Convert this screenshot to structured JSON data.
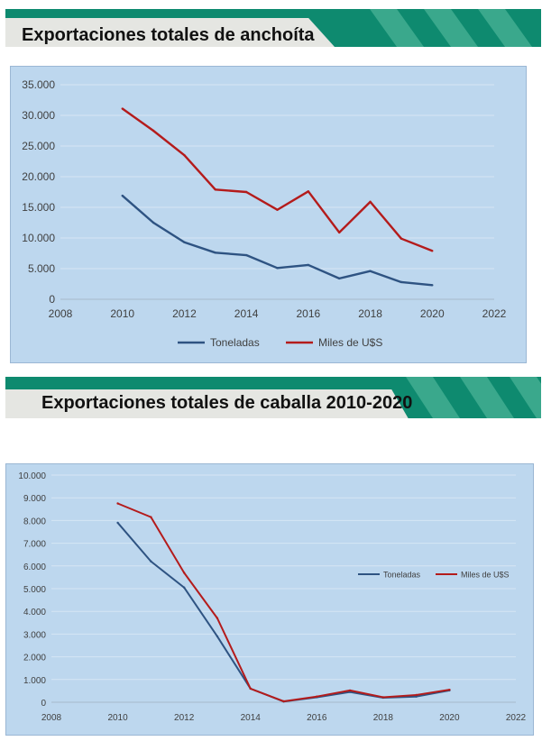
{
  "sections": [
    {
      "title": "Exportaciones totales de anchoíta"
    },
    {
      "title": "Exportaciones totales de caballa 2010-2020"
    }
  ],
  "chart_data": [
    {
      "type": "line",
      "title": "Exportaciones totales de anchoíta",
      "x": [
        2010,
        2011,
        2012,
        2013,
        2014,
        2015,
        2016,
        2017,
        2018,
        2019,
        2020
      ],
      "xlim": [
        2008,
        2022
      ],
      "x_ticks": [
        "2008",
        "2010",
        "2012",
        "2014",
        "2016",
        "2018",
        "2020",
        "2022"
      ],
      "ylim": [
        0,
        35000
      ],
      "y_ticks": [
        "0",
        "5.000",
        "10.000",
        "15.000",
        "20.000",
        "25.000",
        "30.000",
        "35.000"
      ],
      "grid": true,
      "legend_position": "bottom",
      "series": [
        {
          "name": "Toneladas",
          "color": "#2e5382",
          "values": [
            16900,
            12500,
            9300,
            7600,
            7200,
            5100,
            5600,
            3400,
            4600,
            2800,
            2300
          ]
        },
        {
          "name": "Miles de U$S",
          "color": "#b41b1b",
          "values": [
            31100,
            27500,
            23500,
            17900,
            17500,
            14600,
            17600,
            10900,
            15900,
            9900,
            7900
          ]
        }
      ]
    },
    {
      "type": "line",
      "title": "Exportaciones totales de caballa 2010-2020",
      "x": [
        2010,
        2011,
        2012,
        2013,
        2014,
        2015,
        2016,
        2017,
        2018,
        2019,
        2020
      ],
      "xlim": [
        2008,
        2022
      ],
      "x_ticks": [
        "2008",
        "2010",
        "2012",
        "2014",
        "2016",
        "2018",
        "2020",
        "2022"
      ],
      "ylim": [
        0,
        10000
      ],
      "y_ticks": [
        "0",
        "1.000",
        "2.000",
        "3.000",
        "4.000",
        "5.000",
        "6.000",
        "7.000",
        "8.000",
        "9.000",
        "10.000"
      ],
      "grid": true,
      "legend_position": "right",
      "series": [
        {
          "name": "Toneladas",
          "color": "#2e5382",
          "values": [
            7900,
            6200,
            5050,
            2900,
            600,
            30,
            220,
            450,
            200,
            250,
            520
          ]
        },
        {
          "name": "Miles de U$S",
          "color": "#b41b1b",
          "values": [
            8750,
            8150,
            5700,
            3700,
            600,
            40,
            250,
            520,
            220,
            320,
            550
          ]
        }
      ]
    }
  ]
}
